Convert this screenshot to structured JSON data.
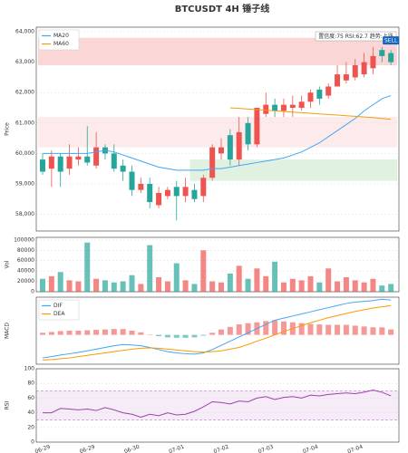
{
  "chart_data": [
    {
      "type": "candlestick",
      "title": "BTCUSDT  4H  锤子线",
      "y_label": "Price",
      "up_color": "#ef5350",
      "down_color": "#26a69a",
      "open": [
        59800,
        59500,
        59900,
        59500,
        59800,
        59900,
        59600,
        60200,
        60000,
        59600,
        59400,
        58800,
        59000,
        58300,
        58600,
        58900,
        58600,
        58800,
        58600,
        59200,
        60000,
        60600,
        59800,
        61000,
        60300,
        61300,
        61600,
        61400,
        61500,
        61500,
        61700,
        62100,
        61900,
        62200,
        62400,
        62500,
        62600,
        62800,
        63400,
        63300
      ],
      "high": [
        60000,
        60100,
        60000,
        60300,
        60200,
        60900,
        60700,
        60300,
        60300,
        59800,
        59600,
        59200,
        59200,
        58900,
        58900,
        59100,
        59200,
        59000,
        59300,
        60300,
        60500,
        60800,
        61200,
        61200,
        61500,
        62000,
        61800,
        61800,
        61900,
        61900,
        62100,
        62200,
        62300,
        62900,
        63000,
        63100,
        63300,
        63500,
        63500,
        63400
      ],
      "low": [
        59300,
        58900,
        58900,
        59300,
        59600,
        59600,
        59500,
        59800,
        59400,
        59100,
        58600,
        58700,
        58200,
        58200,
        58500,
        57800,
        58400,
        58400,
        58400,
        59100,
        59800,
        59600,
        59600,
        60100,
        60200,
        61200,
        61200,
        61200,
        61200,
        61400,
        61500,
        61600,
        61800,
        62200,
        62300,
        62400,
        62500,
        62600,
        63000,
        62900
      ],
      "close": [
        59400,
        59900,
        59400,
        59900,
        59900,
        59700,
        60200,
        60000,
        59500,
        59400,
        58800,
        59000,
        58400,
        58700,
        58800,
        58600,
        58900,
        58500,
        59200,
        60200,
        60200,
        59800,
        60700,
        60300,
        61500,
        61600,
        61400,
        61600,
        61600,
        61700,
        62000,
        61800,
        62200,
        62600,
        62600,
        62900,
        63000,
        63200,
        63200,
        63000
      ],
      "series": [
        {
          "name": "MA20",
          "color": "#42a5f5",
          "values": [
            60000,
            60000,
            60000,
            60000,
            60000,
            60000,
            60050,
            60100,
            60050,
            59950,
            59850,
            59750,
            59650,
            59550,
            59500,
            59450,
            59450,
            59450,
            59450,
            59500,
            59500,
            59550,
            59600,
            59650,
            59700,
            59750,
            59800,
            59850,
            59950,
            60050,
            60200,
            60350,
            60550,
            60750,
            60950,
            61150,
            61400,
            61600,
            61800,
            61900
          ]
        },
        {
          "name": "MA60",
          "color": "#f39c12",
          "values": [
            null,
            null,
            null,
            null,
            null,
            null,
            null,
            null,
            null,
            null,
            null,
            null,
            null,
            null,
            null,
            null,
            null,
            null,
            null,
            null,
            null,
            61500,
            61480,
            61460,
            61440,
            61420,
            61400,
            61380,
            61360,
            61340,
            61320,
            61300,
            61280,
            61260,
            61240,
            61220,
            61200,
            61180,
            61150,
            61120
          ]
        }
      ],
      "zones": [
        {
          "from": 62900,
          "to": 63800,
          "start": 0,
          "color": "#f9cccc"
        },
        {
          "from": 60200,
          "to": 61200,
          "start": 0,
          "color": "#fce6e6"
        },
        {
          "from": 59100,
          "to": 59800,
          "start": 17,
          "color": "#d9eed9"
        }
      ],
      "annotation": "置信度:75  RSI:62.7  趋势:上涨",
      "signal": {
        "label": "SELL",
        "index": 39
      },
      "ylim": [
        57450,
        64150
      ],
      "yticks": [
        {
          "value": 58000,
          "label": "58,000"
        },
        {
          "value": 59000,
          "label": "59,000"
        },
        {
          "value": 60000,
          "label": "60,000"
        },
        {
          "value": 61000,
          "label": "61,000"
        },
        {
          "value": 62000,
          "label": "62,000"
        },
        {
          "value": 63000,
          "label": "63,000"
        },
        {
          "value": 64000,
          "label": "64,000"
        }
      ],
      "grid": true
    },
    {
      "type": "bar",
      "y_label": "Vol",
      "values": [
        25000,
        30000,
        38000,
        22000,
        20000,
        95000,
        25000,
        22000,
        18000,
        20000,
        32000,
        15000,
        90000,
        28000,
        20000,
        55000,
        22000,
        15000,
        80000,
        20000,
        18000,
        35000,
        50000,
        25000,
        45000,
        30000,
        58000,
        18000,
        25000,
        22000,
        30000,
        18000,
        45000,
        20000,
        28000,
        22000,
        18000,
        25000,
        12000,
        15000
      ],
      "ylim": [
        0,
        105000
      ],
      "yticks": [
        0,
        20000,
        40000,
        60000,
        80000,
        100000
      ],
      "grid": true
    },
    {
      "type": "macd",
      "y_label": "MACD",
      "series": [
        {
          "name": "DIF",
          "color": "#42a5f5",
          "values": [
            -550,
            -520,
            -480,
            -450,
            -420,
            -380,
            -340,
            -300,
            -260,
            -230,
            -240,
            -260,
            -300,
            -350,
            -400,
            -430,
            -450,
            -460,
            -430,
            -350,
            -250,
            -150,
            -50,
            50,
            150,
            250,
            350,
            400,
            450,
            500,
            550,
            600,
            650,
            700,
            750,
            780,
            800,
            820,
            850,
            830
          ]
        },
        {
          "name": "DEA",
          "color": "#ff9800",
          "values": [
            -600,
            -590,
            -570,
            -550,
            -520,
            -490,
            -460,
            -430,
            -400,
            -370,
            -340,
            -320,
            -310,
            -320,
            -340,
            -360,
            -380,
            -400,
            -410,
            -400,
            -380,
            -340,
            -300,
            -230,
            -150,
            -80,
            0,
            80,
            150,
            220,
            290,
            350,
            410,
            460,
            510,
            560,
            600,
            640,
            670,
            700
          ]
        }
      ],
      "histogram": [
        50,
        70,
        90,
        100,
        100,
        110,
        120,
        130,
        140,
        140,
        100,
        60,
        10,
        -30,
        -60,
        -70,
        -70,
        -60,
        -20,
        50,
        130,
        190,
        250,
        280,
        300,
        330,
        350,
        320,
        300,
        280,
        260,
        250,
        240,
        240,
        240,
        220,
        200,
        180,
        180,
        130
      ],
      "ylim": [
        -700,
        900
      ],
      "grid": true
    },
    {
      "type": "line",
      "y_label": "RSI",
      "color": "#a040b0",
      "values": [
        40,
        40,
        46,
        45,
        44,
        45,
        43,
        47,
        44,
        40,
        38,
        34,
        38,
        36,
        40,
        37,
        38,
        42,
        48,
        55,
        54,
        52,
        56,
        55,
        60,
        62,
        58,
        61,
        62,
        60,
        64,
        63,
        65,
        66,
        67,
        66,
        68,
        71,
        68,
        63
      ],
      "band": [
        30,
        70
      ],
      "categories": [
        "06-29",
        null,
        null,
        null,
        null,
        "06-29",
        null,
        null,
        null,
        null,
        "06-30",
        null,
        null,
        null,
        null,
        "07-01",
        null,
        null,
        null,
        null,
        "07-02",
        null,
        null,
        null,
        null,
        "07-03",
        null,
        null,
        null,
        null,
        "07-04",
        null,
        null,
        null,
        null,
        "07-04",
        null,
        null,
        null,
        null
      ],
      "ylim": [
        0,
        100
      ],
      "yticks": [
        0,
        20,
        40,
        60,
        80,
        100
      ],
      "grid": true
    }
  ]
}
